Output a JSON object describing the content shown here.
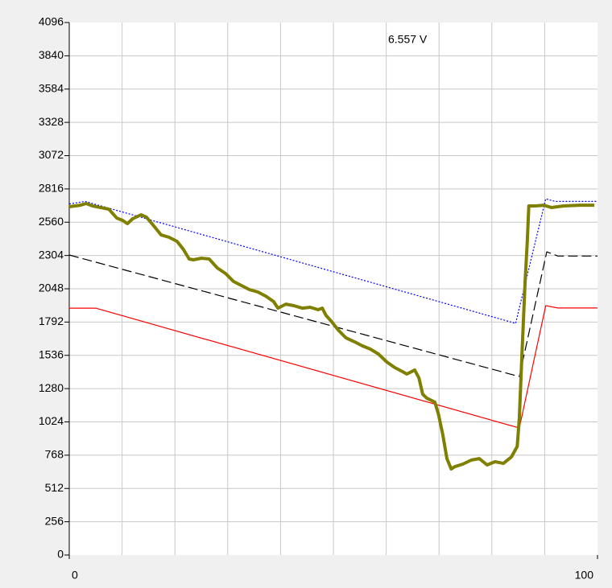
{
  "chart_data": {
    "type": "line",
    "annotation": "6.557 V",
    "xlim": [
      0,
      100
    ],
    "xticks": [
      0,
      100
    ],
    "x_grid_lines": [
      10,
      20,
      30,
      40,
      50,
      60,
      70,
      80,
      90
    ],
    "ylim": [
      0,
      4096
    ],
    "yticks": [
      0,
      256,
      512,
      768,
      1024,
      1280,
      1536,
      1792,
      2048,
      2304,
      2560,
      2816,
      3072,
      3328,
      3584,
      3840,
      4096
    ],
    "grid": true,
    "series": [
      {
        "color": "#0000ff",
        "dash": "2,2",
        "width": 1.2,
        "x": [
          0,
          3,
          84.5,
          90.2,
          92,
          100
        ],
        "values": [
          2700,
          2720,
          1782,
          2740,
          2720,
          2720
        ]
      },
      {
        "color": "#000000",
        "dash": "12,5",
        "width": 1.2,
        "x": [
          0,
          85.2,
          90.4,
          92.5,
          100
        ],
        "values": [
          2308,
          1373,
          2332,
          2300,
          2300
        ]
      },
      {
        "color": "#ff0000",
        "dash": "none",
        "width": 1.2,
        "x": [
          0,
          5,
          13.6,
          85.2,
          90.2,
          92.5,
          100
        ],
        "values": [
          1899,
          1899,
          1800,
          977,
          1918,
          1900,
          1900
        ]
      },
      {
        "color": "#808000",
        "dash": "none",
        "width": 4,
        "x": [
          0,
          2.1,
          3.2,
          4.4,
          7.5,
          9.0,
          10.1,
          11.0,
          12.0,
          13.6,
          14.6,
          15.9,
          17.4,
          18.9,
          20.4,
          21.6,
          22.7,
          23.5,
          25.0,
          26.5,
          28.0,
          29.6,
          31.1,
          32.6,
          34.1,
          35.7,
          37.2,
          38.7,
          39.5,
          41.0,
          42.5,
          44.1,
          45.6,
          47.1,
          47.9,
          48.6,
          49.7,
          50.9,
          52.4,
          54.0,
          55.5,
          57.0,
          58.5,
          60.1,
          61.6,
          63.1,
          63.9,
          65.4,
          66.2,
          66.9,
          67.7,
          69.2,
          69.9,
          70.7,
          71.5,
          72.3,
          73.0,
          74.5,
          76.1,
          77.6,
          79.1,
          80.6,
          82.2,
          83.7,
          84.8,
          85.2,
          85.7,
          86.3,
          86.7,
          87.0,
          88.3,
          89.8,
          91.3,
          93.6,
          96.6,
          99.4
        ],
        "values": [
          2679,
          2691,
          2704,
          2685,
          2660,
          2592,
          2574,
          2549,
          2586,
          2617,
          2599,
          2537,
          2462,
          2444,
          2413,
          2351,
          2277,
          2271,
          2283,
          2277,
          2209,
          2165,
          2104,
          2073,
          2042,
          2023,
          1992,
          1949,
          1899,
          1930,
          1918,
          1899,
          1906,
          1887,
          1899,
          1844,
          1794,
          1732,
          1670,
          1640,
          1609,
          1584,
          1547,
          1485,
          1442,
          1411,
          1392,
          1423,
          1361,
          1237,
          1206,
          1176,
          1083,
          928,
          742,
          662,
          680,
          699,
          730,
          742,
          693,
          718,
          705,
          755,
          835,
          1052,
          1547,
          2104,
          2413,
          2685,
          2685,
          2691,
          2673,
          2685,
          2691,
          2691
        ]
      }
    ]
  }
}
